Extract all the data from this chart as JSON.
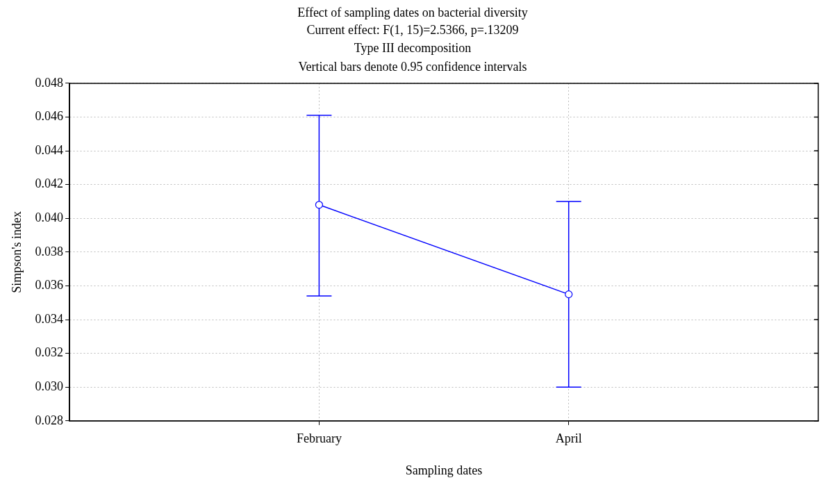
{
  "chart_data": {
    "type": "line",
    "title": "Effect of sampling dates on bacterial diversity",
    "subtitle": "Current effect: F(1, 15)=2.5366, p=.13209\nType III decomposition\nVertical bars denote 0.95 confidence intervals",
    "xlabel": "Sampling dates",
    "ylabel": "Simpson's index",
    "categories": [
      "February",
      "April"
    ],
    "series": [
      {
        "color": "#0000ff",
        "values": [
          0.0408,
          0.0355
        ],
        "errors": [
          [
            0.0354,
            0.0461
          ],
          [
            0.03,
            0.041
          ]
        ]
      }
    ],
    "ylim": [
      0.028,
      0.048
    ],
    "yticks": [
      {
        "value": 0.028,
        "label": "0.028"
      },
      {
        "value": 0.03,
        "label": "0.030"
      },
      {
        "value": 0.032,
        "label": "0.032"
      },
      {
        "value": 0.034,
        "label": "0.034"
      },
      {
        "value": 0.036,
        "label": "0.036"
      },
      {
        "value": 0.038,
        "label": "0.038"
      },
      {
        "value": 0.04,
        "label": "0.040"
      },
      {
        "value": 0.042,
        "label": "0.042"
      },
      {
        "value": 0.044,
        "label": "0.044"
      },
      {
        "value": 0.046,
        "label": "0.046"
      },
      {
        "value": 0.048,
        "label": "0.048"
      }
    ],
    "grid": true,
    "marker": "circle",
    "line_style": "solid",
    "legend": false
  }
}
